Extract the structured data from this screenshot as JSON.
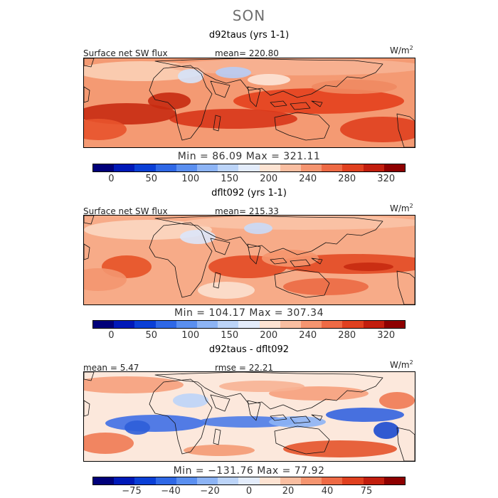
{
  "title": "SON",
  "panels": [
    {
      "title": "d92taus (yrs 1-1)",
      "left_label": "Surface net SW flux",
      "center_label": "mean= 220.80",
      "units": "W/m",
      "units_exp": "2",
      "min_max": "Min =  86.09  Max =  321.11",
      "colorbar_ticks": [
        "0",
        "50",
        "100",
        "150",
        "200",
        "240",
        "280",
        "320"
      ],
      "map": "land-outline-icon"
    },
    {
      "title": "dflt092 (yrs 1-1)",
      "left_label": "Surface net SW flux",
      "center_label": "mean= 215.33",
      "units": "W/m",
      "units_exp": "2",
      "min_max": "Min = 104.17  Max = 307.34",
      "colorbar_ticks": [
        "0",
        "50",
        "100",
        "150",
        "200",
        "240",
        "280",
        "320"
      ],
      "map": "land-outline-icon"
    },
    {
      "title": "d92taus - dflt092",
      "left_label": "mean =    5.47",
      "center_label": "rmse =   22.21",
      "units": "W/m",
      "units_exp": "2",
      "min_max": "Min = −131.76  Max =  77.92",
      "colorbar_ticks": [
        "−75",
        "−40",
        "−20",
        "0",
        "20",
        "40",
        "75"
      ],
      "map": "land-outline-icon"
    }
  ],
  "colors": {
    "colorbar": [
      "#00007a",
      "#0019b8",
      "#0a3fd6",
      "#2f68e6",
      "#5a8ff0",
      "#8db4f5",
      "#bcd4f8",
      "#e3ecfb",
      "#fde3d2",
      "#f9bea1",
      "#f59570",
      "#ee6a45",
      "#e0401f",
      "#c21e0e",
      "#8e0000"
    ],
    "diff_colorbar": [
      "#00007a",
      "#0019b8",
      "#0a3fd6",
      "#2f68e6",
      "#5a8ff0",
      "#8db4f5",
      "#bcd4f8",
      "#e3ecfb",
      "#fde3d2",
      "#f9bea1",
      "#f59570",
      "#ee6a45",
      "#e0401f",
      "#c21e0e",
      "#8e0000"
    ]
  }
}
